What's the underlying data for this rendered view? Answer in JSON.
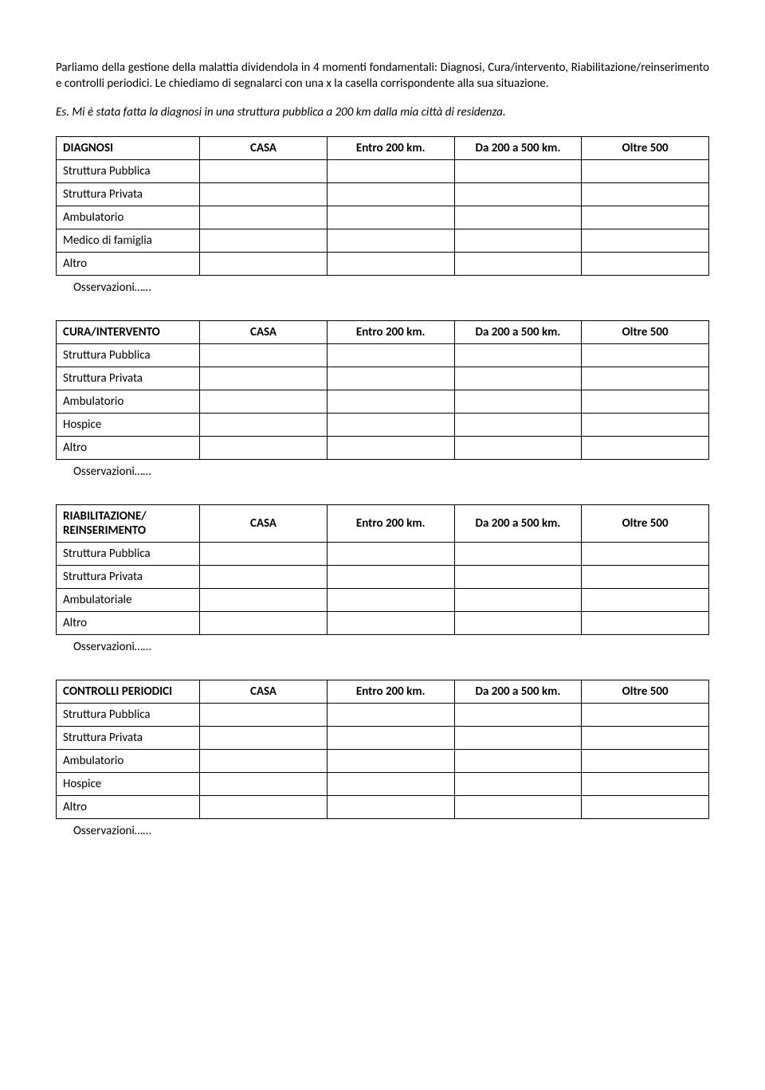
{
  "intro": "Parliamo della gestione della malattia dividendola in 4 momenti fondamentali: Diagnosi, Cura/intervento, Riabilitazione/reinserimento e controlli periodici. Le chiediamo di segnalarci con una x la casella corrispondente alla sua situazione.",
  "example": "Es. Mi è stata fatta la diagnosi in una struttura pubblica a 200 km dalla mia città di residenza.",
  "columns": {
    "c1": "CASA",
    "c2": "Entro 200 km.",
    "c3": "Da 200 a 500 km.",
    "c4": "Oltre 500"
  },
  "observations_label": "Osservazioni……",
  "tables": {
    "diagnosi": {
      "title": "DIAGNOSI",
      "rows": [
        "Struttura Pubblica",
        "Struttura Privata",
        "Ambulatorio",
        "Medico di famiglia",
        "Altro"
      ]
    },
    "cura": {
      "title": "CURA/INTERVENTO",
      "rows": [
        "Struttura Pubblica",
        "Struttura Privata",
        "Ambulatorio",
        "Hospice",
        "Altro"
      ]
    },
    "riabilitazione": {
      "title": "RIABILITAZIONE/ REINSERIMENTO",
      "rows": [
        "Struttura Pubblica",
        "Struttura Privata",
        "Ambulatoriale",
        "Altro"
      ]
    },
    "controlli": {
      "title": "CONTROLLI PERIODICI",
      "rows": [
        "Struttura Pubblica",
        "Struttura Privata",
        "Ambulatorio",
        "Hospice",
        "Altro"
      ]
    }
  }
}
